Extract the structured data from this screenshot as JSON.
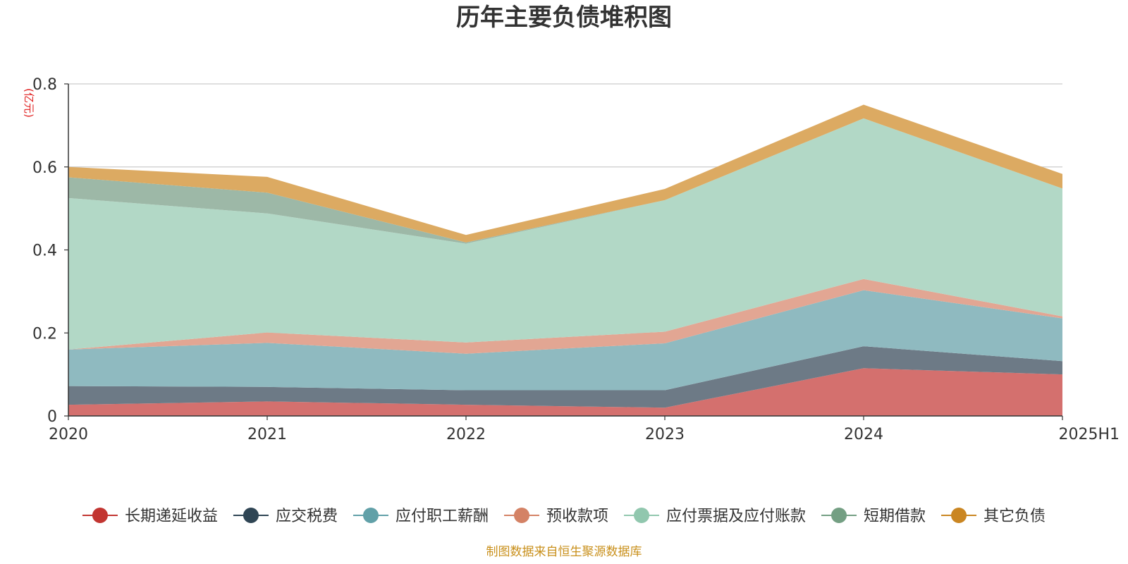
{
  "chart_data": {
    "type": "area",
    "title": "历年主要负债堆积图",
    "unit_label": "(亿元)",
    "categories": [
      "2020",
      "2021",
      "2022",
      "2023",
      "2024",
      "2025H1"
    ],
    "ylim": [
      0,
      0.8
    ],
    "yticks": [
      "0",
      "0.2",
      "0.4",
      "0.6",
      "0.8"
    ],
    "ytick_values": [
      0,
      0.2,
      0.4,
      0.6,
      0.8
    ],
    "grid": true,
    "legend_position": "bottom",
    "stacked": true,
    "series": [
      {
        "name": "长期递延收益",
        "color": "#c23531",
        "fill": "#d4706e",
        "values": [
          0.027,
          0.035,
          0.027,
          0.02,
          0.115,
          0.1
        ]
      },
      {
        "name": "应交税费",
        "color": "#2f4554",
        "fill": "#6d7a86",
        "values": [
          0.045,
          0.035,
          0.035,
          0.042,
          0.053,
          0.032
        ]
      },
      {
        "name": "应付职工薪酬",
        "color": "#61a0a8",
        "fill": "#8fbac0",
        "values": [
          0.088,
          0.106,
          0.088,
          0.113,
          0.135,
          0.103
        ]
      },
      {
        "name": "预收款项",
        "color": "#d48265",
        "fill": "#e2a693",
        "values": [
          0.0,
          0.025,
          0.027,
          0.028,
          0.027,
          0.005
        ]
      },
      {
        "name": "应付票据及应付账款",
        "color": "#91c7ae",
        "fill": "#b2d8c6",
        "values": [
          0.365,
          0.287,
          0.238,
          0.317,
          0.387,
          0.308
        ]
      },
      {
        "name": "短期借款",
        "color": "#749f83",
        "fill": "#9db8a7",
        "values": [
          0.05,
          0.05,
          0.003,
          0.0,
          0.0,
          0.0
        ]
      },
      {
        "name": "其它负债",
        "color": "#ca8622",
        "fill": "#dcaa62",
        "values": [
          0.025,
          0.038,
          0.018,
          0.027,
          0.033,
          0.035
        ]
      }
    ]
  },
  "footer": {
    "source": "制图数据来自恒生聚源数据库"
  }
}
